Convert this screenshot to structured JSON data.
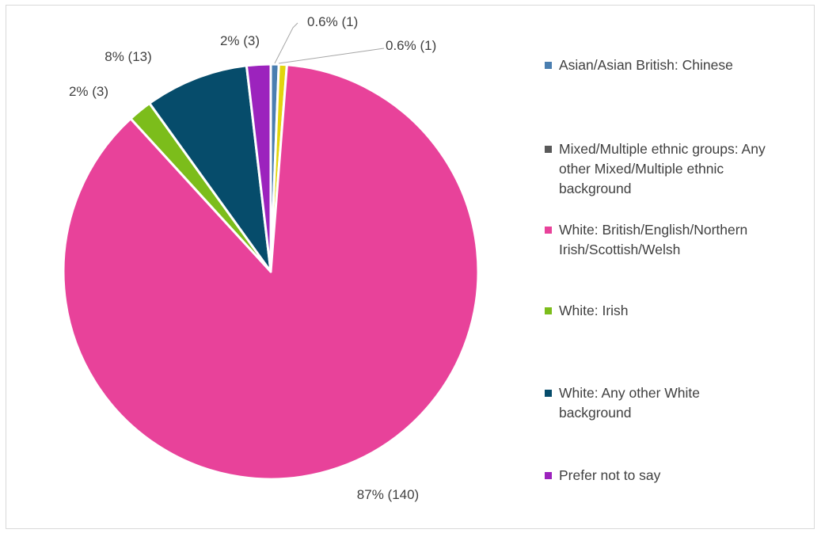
{
  "chart_data": {
    "type": "pie",
    "categories": [
      "Asian/Asian British: Chinese",
      "Mixed/Multiple ethnic groups: Any other Mixed/Multiple ethnic background",
      "White: British/English/Northern Irish/Scottish/Welsh",
      "White: Irish",
      "White: Any other White background",
      "Prefer not to say"
    ],
    "values": [
      1,
      1,
      140,
      3,
      13,
      3
    ],
    "data_labels": [
      "0.6% (1)",
      "0.6% (1)",
      "87% (140)",
      "2% (3)",
      "8% (13)",
      "2% (3)"
    ],
    "colors": [
      "#4a7eb0",
      "#e2d50d",
      "#e8429a",
      "#7cbd1b",
      "#064c6b",
      "#9c23bd"
    ],
    "legend_colors": [
      "#4a7eb0",
      "#595959",
      "#e8429a",
      "#7cbd1b",
      "#064c6b",
      "#9c23bd"
    ],
    "start_angle_deg": 0,
    "direction": "clockwise",
    "legend_position": "right",
    "title": ""
  },
  "legend": {
    "items": [
      {
        "label": "Asian/Asian British: Chinese"
      },
      {
        "label": "Mixed/Multiple ethnic groups: Any other Mixed/Multiple ethnic background"
      },
      {
        "label": "White: British/English/Northern Irish/Scottish/Welsh"
      },
      {
        "label": "White: Irish"
      },
      {
        "label": "White: Any other White background"
      },
      {
        "label": "Prefer not to say"
      }
    ]
  }
}
